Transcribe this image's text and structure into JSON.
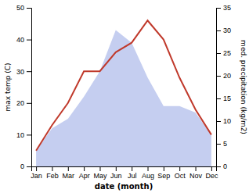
{
  "chart_data": {
    "type": "line",
    "categories": [
      "Jan",
      "Feb",
      "Mar",
      "Apr",
      "May",
      "Jun",
      "Jul",
      "Aug",
      "Sep",
      "Oct",
      "Nov",
      "Dec"
    ],
    "series": [
      {
        "type": "area",
        "color": "#c5cef0",
        "values": [
          5,
          12,
          15,
          22,
          30,
          43,
          39,
          28,
          19,
          19,
          17,
          10
        ]
      },
      {
        "type": "line",
        "color": "#c0392b",
        "values": [
          5,
          13,
          20,
          30,
          30,
          36,
          39,
          46,
          40,
          28,
          18,
          10
        ]
      }
    ],
    "xlabel": "date (month)",
    "ylabel": "max temp (C)",
    "y2label": "med. precipitation (kg/m2)",
    "ylim": [
      0,
      50
    ],
    "yticks": [
      0,
      10,
      20,
      30,
      40,
      50
    ],
    "y2lim": [
      0,
      35
    ],
    "y2ticks": [
      0,
      5,
      10,
      15,
      20,
      25,
      30,
      35
    ]
  }
}
